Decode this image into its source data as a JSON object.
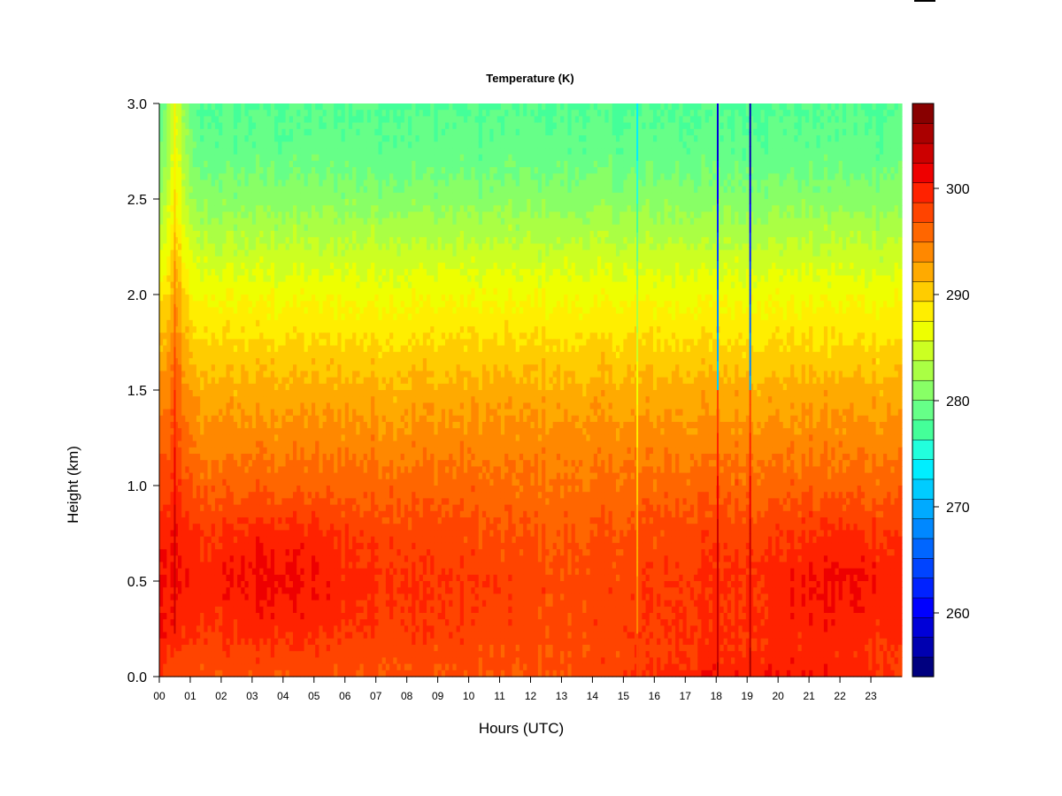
{
  "chart_data": {
    "type": "heatmap",
    "title": "Temperature (K)",
    "xlabel": "Hours (UTC)",
    "ylabel": "Height (km)",
    "x_ticks": [
      "00",
      "01",
      "02",
      "03",
      "04",
      "05",
      "06",
      "07",
      "08",
      "09",
      "10",
      "11",
      "12",
      "13",
      "14",
      "15",
      "16",
      "17",
      "18",
      "19",
      "20",
      "21",
      "22",
      "23"
    ],
    "xlim": [
      0,
      24
    ],
    "y_ticks": [
      "0.0",
      "0.5",
      "1.0",
      "1.5",
      "2.0",
      "2.5",
      "3.0"
    ],
    "ylim": [
      0,
      3
    ],
    "colorbar": {
      "range": [
        254,
        308
      ],
      "levels": 27,
      "ticks": [
        "260",
        "270",
        "280",
        "290",
        "300"
      ],
      "colors": [
        "#00007f",
        "#0000b0",
        "#0000d8",
        "#0000ff",
        "#0022ff",
        "#0044ff",
        "#0066ff",
        "#0088ff",
        "#00aaff",
        "#00ccff",
        "#00eeff",
        "#22ffdd",
        "#44ff99",
        "#66ff88",
        "#88ff66",
        "#aaff44",
        "#ccff22",
        "#eeff00",
        "#ffee00",
        "#ffcc00",
        "#ffaa00",
        "#ff8800",
        "#ff6600",
        "#ff4400",
        "#ff2200",
        "#ee0000",
        "#cc0000",
        "#aa0000",
        "#880000"
      ]
    },
    "profile": {
      "heights_km": [
        0.0,
        0.25,
        0.5,
        0.75,
        1.0,
        1.25,
        1.5,
        1.75,
        2.0,
        2.25,
        2.5,
        2.75,
        3.0
      ],
      "temperature_K": [
        297,
        298.5,
        299,
        298,
        296,
        294,
        292,
        289.5,
        287,
        284,
        281,
        279,
        278
      ]
    },
    "features": [
      {
        "hour": 0.5,
        "description_K_offset": 3
      },
      {
        "hour": 15.45,
        "description_K_offset": -5
      },
      {
        "hour": 18.05,
        "description_K_offset": -20
      },
      {
        "hour": 19.1,
        "description_K_offset": -22
      }
    ]
  }
}
